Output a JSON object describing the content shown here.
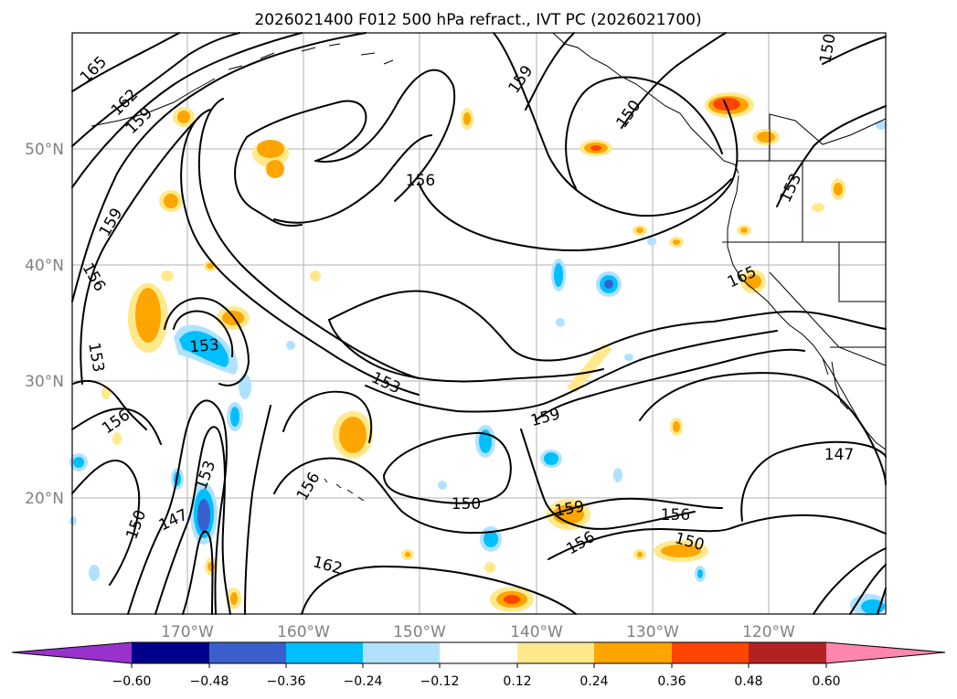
{
  "title": "2026021400 F012 500 hPa refract., IVT PC (2026021700)",
  "map": {
    "lat_ticks": [
      "50°N",
      "40°N",
      "30°N",
      "20°N"
    ],
    "lon_ticks": [
      "170°W",
      "160°W",
      "150°W",
      "140°W",
      "130°W",
      "120°W"
    ],
    "contour_labels": [
      "165",
      "162",
      "159",
      "159",
      "156",
      "153",
      "156",
      "150",
      "147",
      "153",
      "153",
      "156",
      "162",
      "159",
      "156",
      "153",
      "150",
      "159",
      "156",
      "150",
      "147",
      "156",
      "159",
      "165",
      "150",
      "153",
      "150"
    ]
  },
  "colorbar": {
    "colors": [
      "#9932cc",
      "#00008b",
      "#3a5fcd",
      "#00bfff",
      "#b0e2ff",
      "#ffffff",
      "#ffe98c",
      "#ffa500",
      "#ff4500",
      "#b22222",
      "#ff86ad"
    ],
    "tick_labels": [
      "−0.60",
      "−0.48",
      "−0.36",
      "−0.24",
      "−0.12",
      "0.12",
      "0.24",
      "0.36",
      "0.48",
      "0.60"
    ]
  }
}
